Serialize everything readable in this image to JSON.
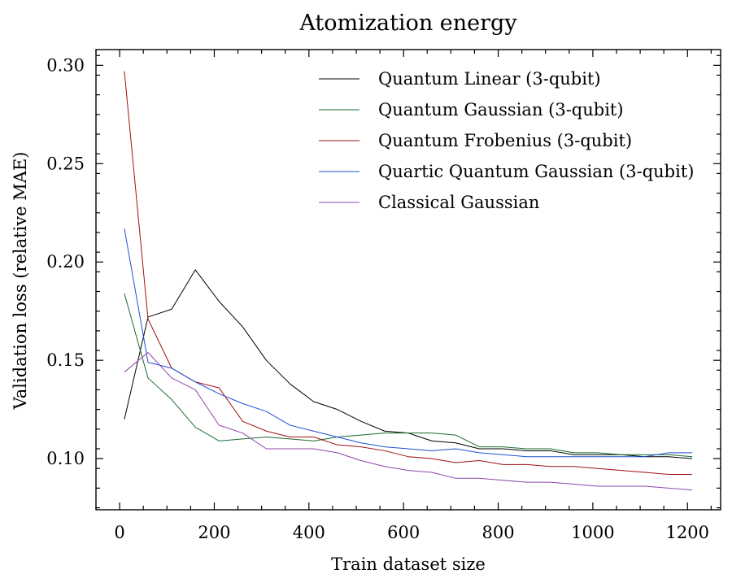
{
  "chart_data": {
    "type": "line",
    "title": "Atomization energy",
    "xlabel": "Train dataset size",
    "ylabel": "Validation loss (relative MAE)",
    "xlim": [
      -50,
      1270
    ],
    "ylim": [
      0.074,
      0.308
    ],
    "xticks": [
      0,
      200,
      400,
      600,
      800,
      1000,
      1200
    ],
    "xtick_labels": [
      "0",
      "200",
      "400",
      "600",
      "800",
      "1000",
      "1200"
    ],
    "yticks": [
      0.1,
      0.15,
      0.2,
      0.25,
      0.3
    ],
    "ytick_labels": [
      "0.10",
      "0.15",
      "0.20",
      "0.25",
      "0.30"
    ],
    "grid": false,
    "legend_position": "top-right",
    "x": [
      10,
      60,
      110,
      160,
      210,
      260,
      310,
      360,
      410,
      460,
      510,
      560,
      610,
      660,
      710,
      760,
      810,
      860,
      910,
      960,
      1010,
      1060,
      1110,
      1160,
      1210
    ],
    "series": [
      {
        "name": "Quantum Linear (3-qubit)",
        "color": "#000000",
        "values": [
          0.12,
          0.172,
          0.176,
          0.196,
          0.18,
          0.167,
          0.15,
          0.138,
          0.129,
          0.125,
          0.119,
          0.114,
          0.113,
          0.109,
          0.108,
          0.105,
          0.105,
          0.104,
          0.104,
          0.102,
          0.102,
          0.102,
          0.101,
          0.101,
          0.1
        ]
      },
      {
        "name": "Quantum Gaussian (3-qubit)",
        "color": "#1a6b2e",
        "values": [
          0.184,
          0.141,
          0.13,
          0.116,
          0.109,
          0.11,
          0.111,
          0.11,
          0.109,
          0.111,
          0.112,
          0.113,
          0.113,
          0.113,
          0.112,
          0.106,
          0.106,
          0.105,
          0.105,
          0.103,
          0.103,
          0.102,
          0.102,
          0.102,
          0.101
        ]
      },
      {
        "name": "Quantum Frobenius (3-qubit)",
        "color": "#a01010",
        "values": [
          0.297,
          0.171,
          0.146,
          0.139,
          0.136,
          0.119,
          0.114,
          0.111,
          0.111,
          0.107,
          0.106,
          0.104,
          0.101,
          0.1,
          0.098,
          0.099,
          0.097,
          0.097,
          0.096,
          0.096,
          0.095,
          0.094,
          0.093,
          0.092,
          0.092
        ]
      },
      {
        "name": "Quartic Quantum Gaussian (3-qubit)",
        "color": "#1f4fd6",
        "values": [
          0.217,
          0.149,
          0.146,
          0.139,
          0.133,
          0.128,
          0.124,
          0.117,
          0.114,
          0.111,
          0.108,
          0.106,
          0.105,
          0.104,
          0.105,
          0.103,
          0.102,
          0.101,
          0.101,
          0.101,
          0.101,
          0.101,
          0.101,
          0.103,
          0.103
        ]
      },
      {
        "name": "Classical Gaussian",
        "color": "#8e44ad",
        "values": [
          0.144,
          0.154,
          0.141,
          0.135,
          0.117,
          0.113,
          0.105,
          0.105,
          0.105,
          0.103,
          0.099,
          0.096,
          0.094,
          0.093,
          0.09,
          0.09,
          0.089,
          0.088,
          0.088,
          0.087,
          0.086,
          0.086,
          0.086,
          0.085,
          0.084
        ]
      }
    ]
  }
}
